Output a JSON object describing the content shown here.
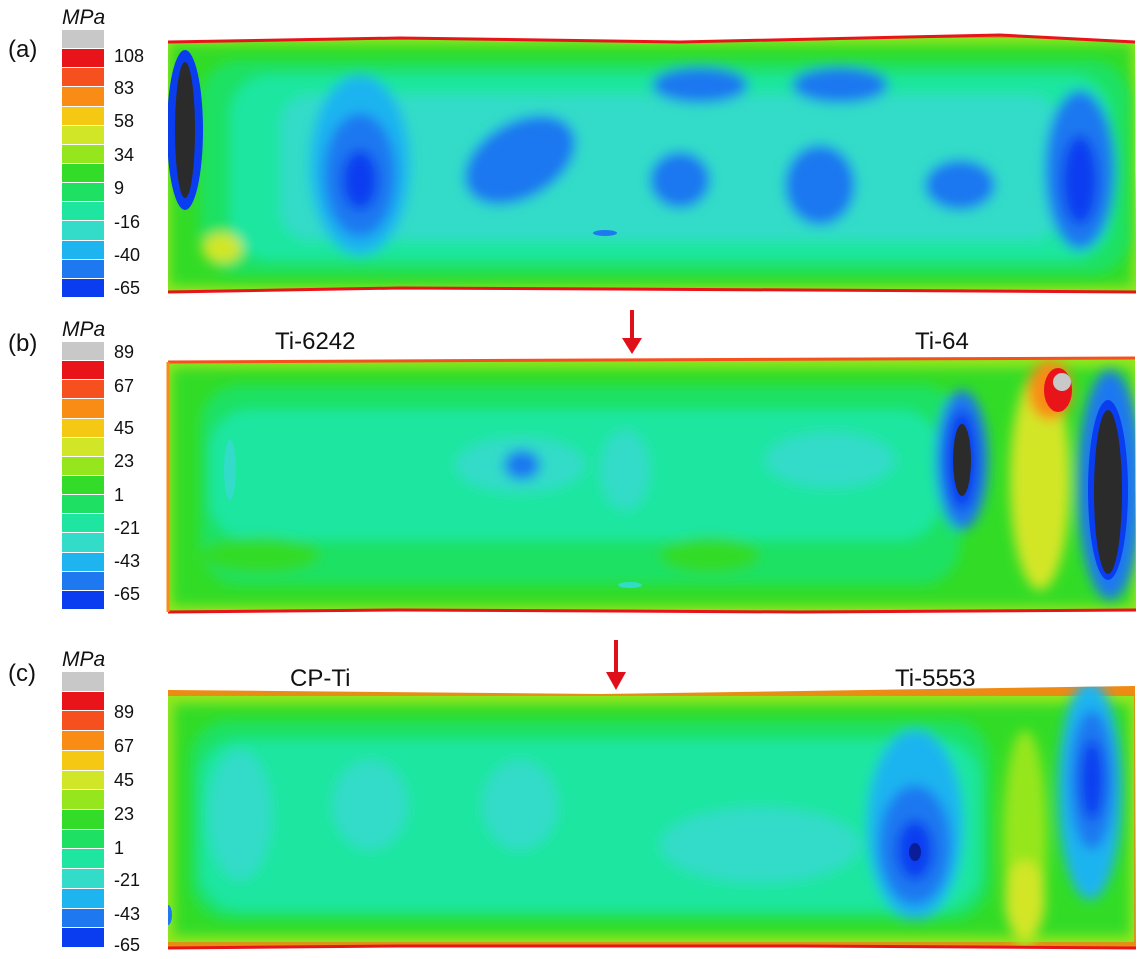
{
  "panels": [
    {
      "label": "(a)",
      "unit": "MPa",
      "ticks": [
        "108",
        "83",
        "58",
        "34",
        "9",
        "-16",
        "-40",
        "-65"
      ],
      "materials": []
    },
    {
      "label": "(b)",
      "unit": "MPa",
      "ticks": [
        "89",
        "67",
        "45",
        "23",
        "1",
        "-21",
        "-43",
        "-65"
      ],
      "materials": [
        "Ti-6242",
        "Ti-64"
      ]
    },
    {
      "label": "(c)",
      "unit": "MPa",
      "ticks": [
        "89",
        "67",
        "45",
        "23",
        "1",
        "-21",
        "-43",
        "-65"
      ],
      "materials": [
        "CP-Ti",
        "Ti-5553"
      ]
    }
  ],
  "colorbar_colors": [
    "#c8c8c8",
    "#e8141a",
    "#f5501e",
    "#f88c14",
    "#f5c814",
    "#d2e628",
    "#96e61e",
    "#32dc28",
    "#1ee164",
    "#1ee6a0",
    "#32dcc8",
    "#1eb4f0",
    "#1e78f0",
    "#0a3cf0"
  ],
  "arrow_color": "#e0101a"
}
